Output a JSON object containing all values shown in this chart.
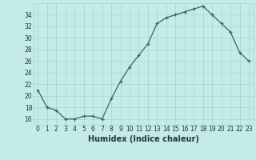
{
  "x": [
    0,
    1,
    2,
    3,
    4,
    5,
    6,
    7,
    8,
    9,
    10,
    11,
    12,
    13,
    14,
    15,
    16,
    17,
    18,
    19,
    20,
    21,
    22,
    23
  ],
  "y": [
    21,
    18,
    17.5,
    16,
    16,
    16.5,
    16.5,
    16,
    19.5,
    22.5,
    25,
    27,
    29,
    32.5,
    33.5,
    34,
    34.5,
    35,
    35.5,
    34,
    32.5,
    31,
    27.5,
    26
  ],
  "line_color": "#2d6b5e",
  "marker_color": "#2d6b5e",
  "bg_color": "#c5ebe7",
  "grid_color": "#a8d4d0",
  "xlabel": "Humidex (Indice chaleur)",
  "xlim": [
    -0.5,
    23.5
  ],
  "ylim": [
    15,
    36
  ],
  "yticks": [
    16,
    18,
    20,
    22,
    24,
    26,
    28,
    30,
    32,
    34
  ],
  "xticks": [
    0,
    1,
    2,
    3,
    4,
    5,
    6,
    7,
    8,
    9,
    10,
    11,
    12,
    13,
    14,
    15,
    16,
    17,
    18,
    19,
    20,
    21,
    22,
    23
  ],
  "tick_fontsize": 5.5,
  "label_fontsize": 7,
  "tick_color": "#1a3a35",
  "label_color": "#1a3a35"
}
